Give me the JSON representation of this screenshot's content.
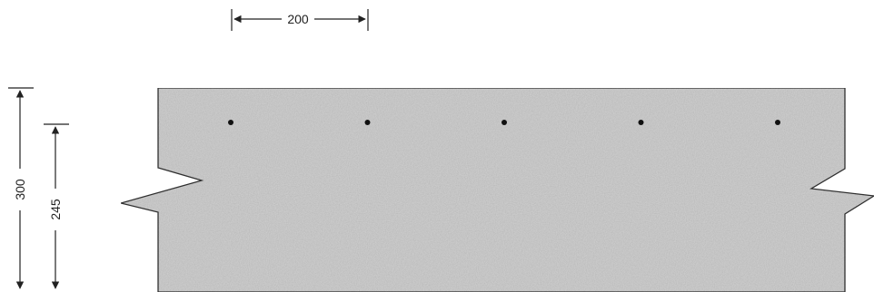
{
  "diagram": {
    "dimensions": {
      "rebar_spacing": "200",
      "overall_depth": "300",
      "effective_depth": "245"
    },
    "rebar_count": 5,
    "colors": {
      "concrete_fill": "#d2d2d2",
      "outline": "#333333",
      "rebar": "#111111",
      "dimension_line": "#222222"
    }
  }
}
